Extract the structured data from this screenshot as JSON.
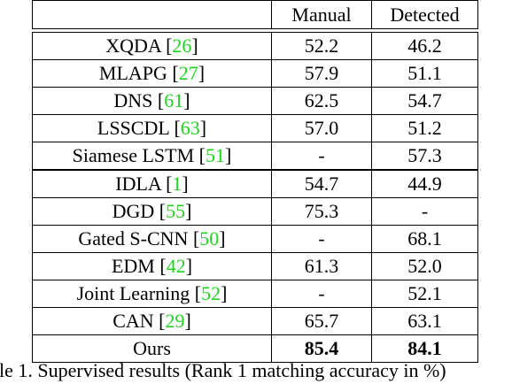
{
  "table": {
    "header": [
      "",
      "Manual",
      "Detected"
    ],
    "group1": [
      {
        "method": "XQDA",
        "ref": "26",
        "manual": "52.2",
        "detected": "46.2"
      },
      {
        "method": "MLAPG",
        "ref": "27",
        "manual": "57.9",
        "detected": "51.1"
      },
      {
        "method": "DNS",
        "ref": "61",
        "manual": "62.5",
        "detected": "54.7"
      },
      {
        "method": "LSSCDL",
        "ref": "63",
        "manual": "57.0",
        "detected": "51.2"
      },
      {
        "method": "Siamese LSTM",
        "ref": "51",
        "manual": "-",
        "detected": "57.3"
      }
    ],
    "group2": [
      {
        "method": "IDLA",
        "ref": "1",
        "manual": "54.7",
        "detected": "44.9"
      },
      {
        "method": "DGD",
        "ref": "55",
        "manual": "75.3",
        "detected": "-"
      },
      {
        "method": "Gated S-CNN",
        "ref": "50",
        "manual": "-",
        "detected": "68.1"
      },
      {
        "method": "EDM",
        "ref": "42",
        "manual": "61.3",
        "detected": "52.0"
      },
      {
        "method": "Joint Learning",
        "ref": "52",
        "manual": "-",
        "detected": "52.1"
      },
      {
        "method": "CAN",
        "ref": "29",
        "manual": "65.7",
        "detected": "63.1"
      }
    ],
    "ours": {
      "method": "Ours",
      "manual": "85.4",
      "detected": "84.1"
    }
  },
  "caption": "ble 1. Supervised results (Rank 1 matching accuracy in %)",
  "colors": {
    "citation": "#1fd31f",
    "text": "#000000",
    "background": "#ffffff"
  }
}
